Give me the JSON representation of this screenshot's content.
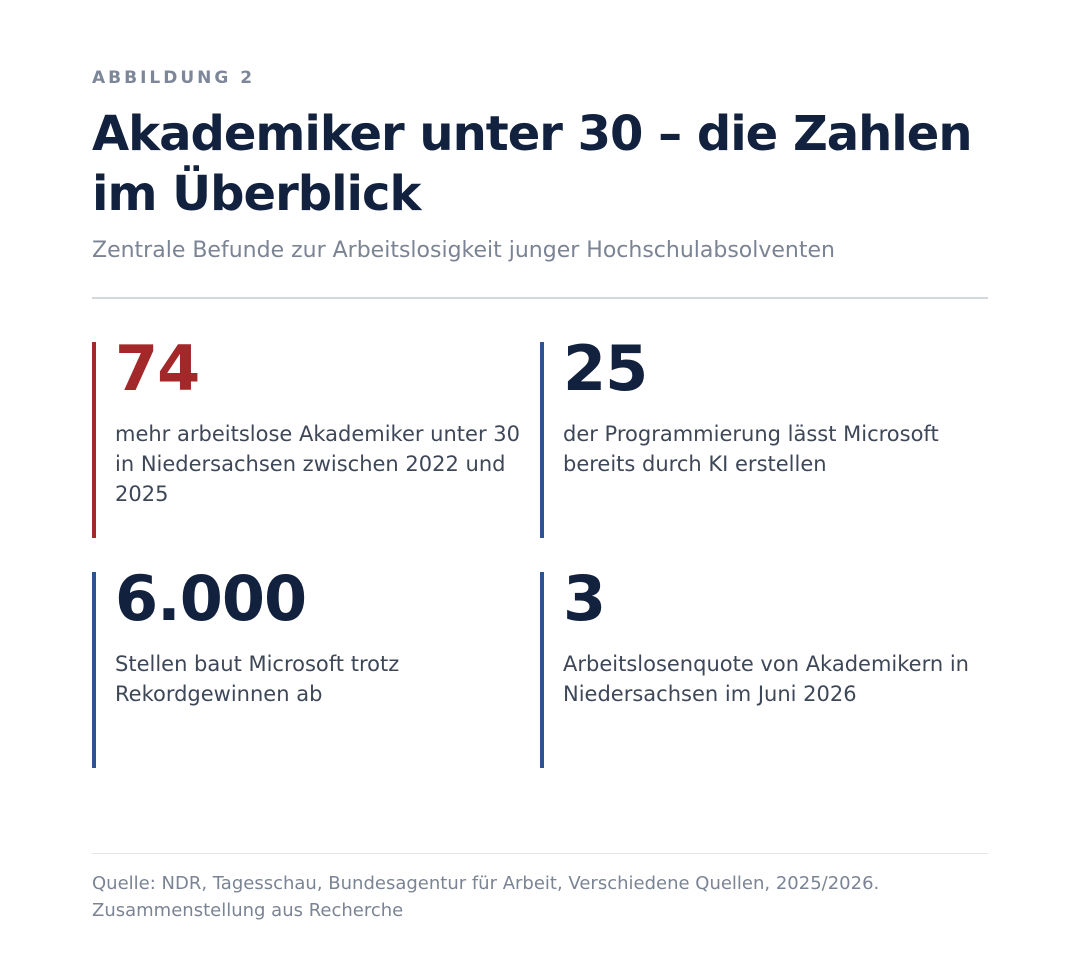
{
  "figure": {
    "kicker": "ABBILDUNG 2",
    "title": "Akademiker unter 30 – die Zahlen im Überblick",
    "subtitle": "Zentrale Befunde zur Arbeitslosigkeit junger Hochschulabsolventen"
  },
  "stats": [
    {
      "value": "74",
      "description": "mehr arbeitslose Akademiker unter 30 in Niedersachsen zwischen 2022 und 2025",
      "accent_color": "#a3282a"
    },
    {
      "value": "25",
      "description": "der Programmierung lässt Microsoft bereits durch KI erstellen",
      "accent_color": "#2f5291"
    },
    {
      "value": "6.000",
      "description": "Stellen baut Microsoft trotz Rekordgewinnen ab",
      "accent_color": "#2f5291"
    },
    {
      "value": "3",
      "description": "Arbeitslosenquote von Akademikern in Niedersachsen im Juni 2026",
      "accent_color": "#2f5291"
    }
  ],
  "source": "Quelle: NDR, Tagesschau, Bundesagentur für Arbeit, Verschiedene Quellen, 2025/2026. Zusammenstellung aus Recherche"
}
